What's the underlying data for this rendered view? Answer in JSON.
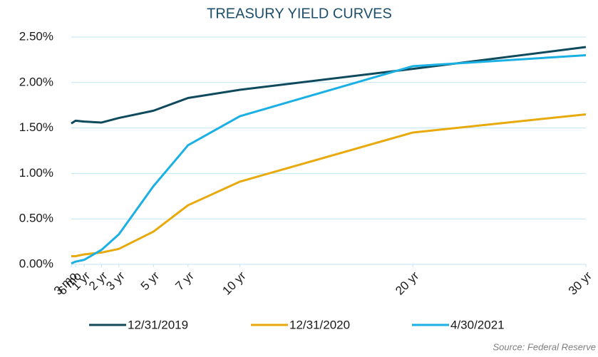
{
  "chart_data": {
    "type": "line",
    "title": "TREASURY YIELD CURVES",
    "x": [
      0.25,
      0.5,
      1,
      2,
      3,
      5,
      7,
      10,
      20,
      30
    ],
    "xlim": [
      0.25,
      30
    ],
    "xticks": [
      {
        "value": 0.25,
        "label": "3 mo"
      },
      {
        "value": 0.5,
        "label": "6 mo"
      },
      {
        "value": 1,
        "label": "1 yr"
      },
      {
        "value": 2,
        "label": "2 yr"
      },
      {
        "value": 3,
        "label": "3 yr"
      },
      {
        "value": 5,
        "label": "5 yr"
      },
      {
        "value": 7,
        "label": "7 yr"
      },
      {
        "value": 10,
        "label": "10 yr"
      },
      {
        "value": 20,
        "label": "20 yr"
      },
      {
        "value": 30,
        "label": "30 yr"
      }
    ],
    "ylim": [
      0,
      2.5
    ],
    "yticks": [
      {
        "value": 0,
        "label": "0.00%"
      },
      {
        "value": 0.5,
        "label": "0.50%"
      },
      {
        "value": 1,
        "label": "1.00%"
      },
      {
        "value": 1.5,
        "label": "1.50%"
      },
      {
        "value": 2,
        "label": "2.00%"
      },
      {
        "value": 2.5,
        "label": "2.50%"
      }
    ],
    "grid": true,
    "series": [
      {
        "name": "12/31/2019",
        "color": "#0e4a5c",
        "values": [
          1.55,
          1.58,
          1.57,
          1.56,
          1.61,
          1.69,
          1.83,
          1.92,
          2.15,
          2.39
        ]
      },
      {
        "name": "12/31/2020",
        "color": "#e8a90c",
        "values": [
          0.09,
          0.09,
          0.11,
          0.13,
          0.17,
          0.36,
          0.65,
          0.91,
          1.45,
          1.65
        ]
      },
      {
        "name": "4/30/2021",
        "color": "#1ab0e3",
        "values": [
          0.01,
          0.03,
          0.05,
          0.16,
          0.33,
          0.86,
          1.31,
          1.63,
          2.18,
          2.3
        ]
      }
    ],
    "source": "Source: Federal Reserve"
  }
}
